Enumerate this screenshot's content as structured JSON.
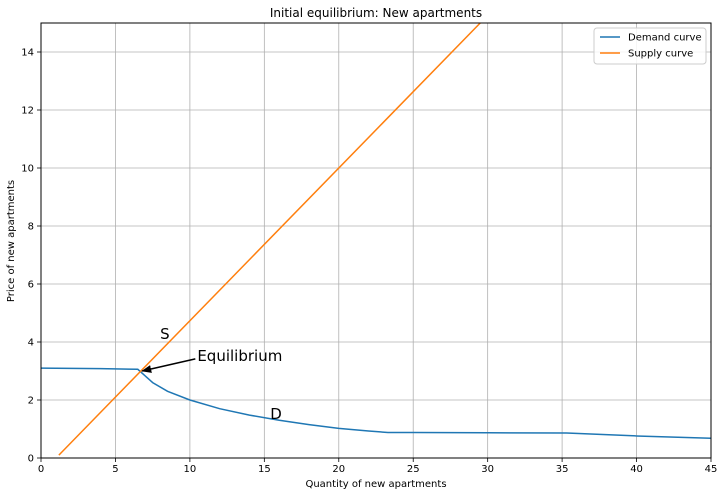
{
  "chart_data": {
    "type": "line",
    "title": "Initial equilibrium: New apartments",
    "xlabel": "Quantity of new apartments",
    "ylabel": "Price of new apartments",
    "xlim": [
      0,
      45
    ],
    "ylim": [
      0,
      15
    ],
    "xticks": [
      0,
      5,
      10,
      15,
      20,
      25,
      30,
      35,
      40,
      45
    ],
    "yticks": [
      0,
      2,
      4,
      6,
      8,
      10,
      12,
      14
    ],
    "grid": true,
    "legend_position": "top-right",
    "series": [
      {
        "name": "Demand curve",
        "color": "#1f77b4",
        "x": [
          0,
          2,
          4,
          6.5,
          7.5,
          8.5,
          10,
          12,
          14,
          16,
          18,
          20,
          22,
          23.3,
          25,
          30,
          35.3,
          40,
          45
        ],
        "y": [
          3.1,
          3.09,
          3.08,
          3.06,
          2.6,
          2.3,
          2.0,
          1.7,
          1.48,
          1.3,
          1.15,
          1.02,
          0.93,
          0.88,
          0.88,
          0.87,
          0.86,
          0.76,
          0.68
        ]
      },
      {
        "name": "Supply curve",
        "color": "#ff7f0e",
        "x": [
          1.2,
          29.5
        ],
        "y": [
          0.1,
          15.0
        ]
      }
    ],
    "annotations": [
      {
        "text": "S",
        "x": 8.0,
        "y": 4.1
      },
      {
        "text": "D",
        "x": 15.4,
        "y": 1.35
      },
      {
        "text": "Equilibrium",
        "x": 10.5,
        "y": 3.35,
        "arrow_to": [
          6.8,
          3.0
        ]
      }
    ]
  }
}
